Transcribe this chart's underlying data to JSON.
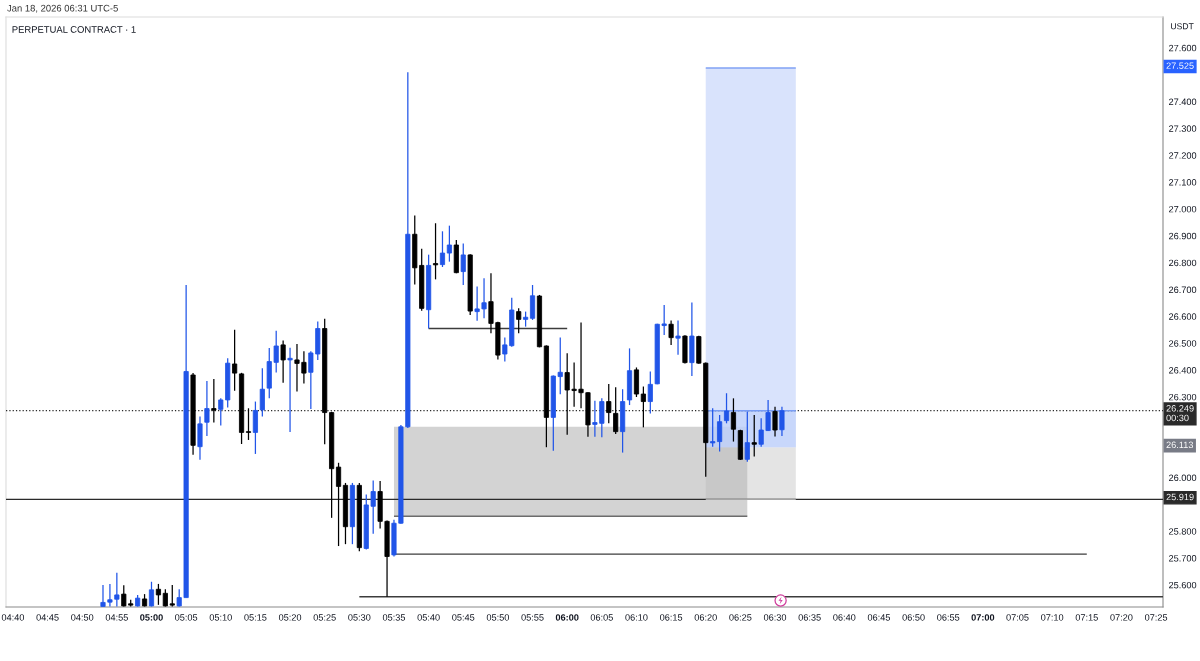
{
  "chart_data": {
    "type": "candlestick",
    "title": "PERPETUAL CONTRACT · 1",
    "ylabel": "USDT",
    "annotations": [
      "Jan 18, 2026 06:31 UTC-5",
      {
        "text": "27.525",
        "y": 27.525
      },
      {
        "text": "26.113",
        "y": 26.113
      }
    ],
    "x": [
      "2026-01-18T04:53",
      "2026-01-18T04:54",
      "2026-01-18T04:55",
      "2026-01-18T04:56",
      "2026-01-18T04:57",
      "2026-01-18T04:58",
      "2026-01-18T04:59",
      "2026-01-18T05:00",
      "2026-01-18T05:01",
      "2026-01-18T05:02",
      "2026-01-18T05:03",
      "2026-01-18T05:04",
      "2026-01-18T05:05",
      "2026-01-18T05:06",
      "2026-01-18T05:07",
      "2026-01-18T05:08",
      "2026-01-18T05:09",
      "2026-01-18T05:10",
      "2026-01-18T05:11",
      "2026-01-18T05:12",
      "2026-01-18T05:13",
      "2026-01-18T05:14",
      "2026-01-18T05:15",
      "2026-01-18T05:16",
      "2026-01-18T05:17",
      "2026-01-18T05:18",
      "2026-01-18T05:19",
      "2026-01-18T05:20",
      "2026-01-18T05:21",
      "2026-01-18T05:22",
      "2026-01-18T05:23",
      "2026-01-18T05:24",
      "2026-01-18T05:25",
      "2026-01-18T05:26",
      "2026-01-18T05:27",
      "2026-01-18T05:28",
      "2026-01-18T05:29",
      "2026-01-18T05:30",
      "2026-01-18T05:31",
      "2026-01-18T05:32",
      "2026-01-18T05:33",
      "2026-01-18T05:34",
      "2026-01-18T05:35",
      "2026-01-18T05:36",
      "2026-01-18T05:37",
      "2026-01-18T05:38",
      "2026-01-18T05:39",
      "2026-01-18T05:40",
      "2026-01-18T05:41",
      "2026-01-18T05:42",
      "2026-01-18T05:43",
      "2026-01-18T05:44",
      "2026-01-18T05:45",
      "2026-01-18T05:46",
      "2026-01-18T05:47",
      "2026-01-18T05:48",
      "2026-01-18T05:49",
      "2026-01-18T05:50",
      "2026-01-18T05:51",
      "2026-01-18T05:52",
      "2026-01-18T05:53",
      "2026-01-18T05:54",
      "2026-01-18T05:55",
      "2026-01-18T05:56",
      "2026-01-18T05:57",
      "2026-01-18T05:58",
      "2026-01-18T05:59",
      "2026-01-18T06:00",
      "2026-01-18T06:01",
      "2026-01-18T06:02",
      "2026-01-18T06:03",
      "2026-01-18T06:04",
      "2026-01-18T06:05",
      "2026-01-18T06:06",
      "2026-01-18T06:07",
      "2026-01-18T06:08",
      "2026-01-18T06:09",
      "2026-01-18T06:10",
      "2026-01-18T06:11",
      "2026-01-18T06:12",
      "2026-01-18T06:13",
      "2026-01-18T06:14",
      "2026-01-18T06:15",
      "2026-01-18T06:16",
      "2026-01-18T06:17",
      "2026-01-18T06:18",
      "2026-01-18T06:19",
      "2026-01-18T06:20",
      "2026-01-18T06:21",
      "2026-01-18T06:22",
      "2026-01-18T06:23",
      "2026-01-18T06:24",
      "2026-01-18T06:25",
      "2026-01-18T06:26",
      "2026-01-18T06:27",
      "2026-01-18T06:28",
      "2026-01-18T06:29",
      "2026-01-18T06:30",
      "2026-01-18T06:31"
    ],
    "ohlc": [
      [
        25.52,
        25.6,
        25.52,
        25.535
      ],
      [
        25.536,
        25.604,
        25.52,
        25.545
      ],
      [
        25.547,
        25.646,
        25.52,
        25.563
      ],
      [
        25.566,
        25.599,
        25.52,
        25.522
      ],
      [
        25.53,
        25.545,
        25.52,
        25.525
      ],
      [
        25.522,
        25.563,
        25.52,
        25.551
      ],
      [
        25.548,
        25.566,
        25.52,
        25.522
      ],
      [
        25.522,
        25.612,
        25.52,
        25.582
      ],
      [
        25.584,
        25.604,
        25.526,
        25.563
      ],
      [
        25.569,
        25.584,
        25.52,
        25.522
      ],
      [
        25.53,
        25.6,
        25.52,
        25.525
      ],
      [
        25.522,
        25.584,
        25.52,
        25.553
      ],
      [
        25.553,
        26.717,
        25.553,
        26.395
      ],
      [
        26.382,
        26.389,
        26.085,
        26.12
      ],
      [
        26.115,
        26.227,
        26.066,
        26.2
      ],
      [
        26.206,
        26.36,
        26.155,
        26.257
      ],
      [
        26.257,
        26.367,
        26.205,
        26.251
      ],
      [
        26.254,
        26.295,
        26.194,
        26.289
      ],
      [
        26.289,
        26.444,
        26.261,
        26.426
      ],
      [
        26.423,
        26.55,
        26.323,
        26.389
      ],
      [
        26.386,
        26.39,
        26.125,
        26.168
      ],
      [
        26.171,
        26.258,
        26.14,
        26.168
      ],
      [
        26.168,
        26.283,
        26.088,
        26.25
      ],
      [
        26.252,
        26.407,
        26.227,
        26.329
      ],
      [
        26.333,
        26.482,
        26.295,
        26.432
      ],
      [
        26.429,
        26.547,
        26.391,
        26.49
      ],
      [
        26.494,
        26.51,
        26.353,
        26.438
      ],
      [
        26.438,
        26.483,
        26.17,
        26.444
      ],
      [
        26.438,
        26.497,
        26.32,
        26.425
      ],
      [
        26.429,
        26.47,
        26.35,
        26.389
      ],
      [
        26.392,
        26.47,
        26.255,
        26.464
      ],
      [
        26.46,
        26.581,
        26.438,
        26.555
      ],
      [
        26.555,
        26.591,
        26.124,
        26.242
      ],
      [
        26.242,
        26.245,
        25.85,
        26.033
      ],
      [
        26.039,
        26.055,
        25.745,
        25.967
      ],
      [
        25.971,
        25.98,
        25.752,
        25.817
      ],
      [
        25.817,
        25.98,
        25.752,
        25.971
      ],
      [
        25.971,
        25.98,
        25.726,
        25.739
      ],
      [
        25.736,
        25.937,
        25.732,
        25.898
      ],
      [
        25.893,
        25.989,
        25.791,
        25.948
      ],
      [
        25.948,
        25.987,
        25.81,
        25.837
      ],
      [
        25.837,
        25.84,
        25.556,
        25.706
      ],
      [
        25.712,
        25.843,
        25.706,
        25.83
      ],
      [
        25.83,
        26.196,
        25.828,
        26.189
      ],
      [
        26.189,
        27.509,
        26.185,
        26.906
      ],
      [
        26.906,
        26.976,
        26.719,
        26.781
      ],
      [
        26.79,
        26.852,
        26.621,
        26.63
      ],
      [
        26.625,
        26.83,
        26.555,
        26.79
      ],
      [
        26.797,
        26.947,
        26.738,
        26.792
      ],
      [
        26.793,
        26.917,
        26.784,
        26.836
      ],
      [
        26.836,
        26.938,
        26.804,
        26.866
      ],
      [
        26.866,
        26.885,
        26.761,
        26.763
      ],
      [
        26.767,
        26.872,
        26.717,
        26.829
      ],
      [
        26.829,
        26.832,
        26.605,
        26.62
      ],
      [
        26.618,
        26.711,
        26.584,
        26.628
      ],
      [
        26.628,
        26.742,
        26.593,
        26.651
      ],
      [
        26.655,
        26.761,
        26.537,
        26.574
      ],
      [
        26.577,
        26.58,
        26.44,
        26.456
      ],
      [
        26.46,
        26.522,
        26.432,
        26.494
      ],
      [
        26.491,
        26.67,
        26.487,
        26.624
      ],
      [
        26.618,
        26.63,
        26.537,
        26.589
      ],
      [
        26.589,
        26.618,
        26.562,
        26.597
      ],
      [
        26.593,
        26.717,
        26.587,
        26.677
      ],
      [
        26.676,
        26.68,
        26.485,
        26.487
      ],
      [
        26.49,
        26.492,
        26.113,
        26.224
      ],
      [
        26.224,
        26.38,
        26.1,
        26.378
      ],
      [
        26.376,
        26.522,
        26.31,
        26.392
      ],
      [
        26.391,
        26.463,
        26.159,
        26.326
      ],
      [
        26.329,
        26.428,
        26.264,
        26.324
      ],
      [
        26.329,
        26.577,
        26.258,
        26.316
      ],
      [
        26.316,
        26.318,
        26.152,
        26.196
      ],
      [
        26.198,
        26.286,
        26.152,
        26.205
      ],
      [
        26.202,
        26.295,
        26.15,
        26.283
      ],
      [
        26.283,
        26.348,
        26.202,
        26.242
      ],
      [
        26.239,
        26.336,
        26.162,
        26.171
      ],
      [
        26.171,
        26.329,
        26.093,
        26.283
      ],
      [
        26.289,
        26.481,
        26.27,
        26.398
      ],
      [
        26.401,
        26.41,
        26.3,
        26.311
      ],
      [
        26.311,
        26.339,
        26.187,
        26.283
      ],
      [
        26.283,
        26.395,
        26.239,
        26.347
      ],
      [
        26.349,
        26.573,
        26.347,
        26.571
      ],
      [
        26.566,
        26.643,
        26.531,
        26.572
      ],
      [
        26.571,
        26.585,
        26.494,
        26.521
      ],
      [
        26.519,
        26.585,
        26.457,
        26.527
      ],
      [
        26.527,
        26.53,
        26.425,
        26.428
      ],
      [
        26.428,
        26.652,
        26.378,
        26.527
      ],
      [
        26.525,
        26.528,
        26.424,
        26.426
      ],
      [
        26.426,
        26.428,
        26.003,
        26.13
      ],
      [
        26.129,
        26.258,
        26.115,
        26.134
      ],
      [
        26.134,
        26.233,
        26.097,
        26.208
      ],
      [
        26.212,
        26.314,
        26.202,
        26.248
      ],
      [
        26.242,
        26.295,
        26.134,
        26.18
      ],
      [
        26.175,
        26.178,
        26.066,
        26.068
      ],
      [
        26.068,
        26.246,
        26.059,
        26.13
      ],
      [
        26.13,
        26.233,
        26.078,
        26.124
      ],
      [
        26.124,
        26.221,
        26.115,
        26.177
      ],
      [
        26.175,
        26.289,
        26.173,
        26.242
      ],
      [
        26.246,
        26.264,
        26.153,
        26.177
      ],
      [
        26.178,
        26.264,
        26.155,
        26.249
      ]
    ],
    "colors": [
      "#2155e8",
      "#2155e8",
      "#2155e8",
      "#000000",
      "#000000",
      "#2155e8",
      "#000000",
      "#2155e8",
      "#000000",
      "#000000",
      "#000000",
      "#2155e8",
      "#2155e8",
      "#000000",
      "#2155e8",
      "#2155e8",
      "#000000",
      "#2155e8",
      "#2155e8",
      "#000000",
      "#000000",
      "#000000",
      "#2155e8",
      "#2155e8",
      "#2155e8",
      "#2155e8",
      "#000000",
      "#2155e8",
      "#000000",
      "#000000",
      "#2155e8",
      "#2155e8",
      "#000000",
      "#000000",
      "#000000",
      "#000000",
      "#2155e8",
      "#000000",
      "#2155e8",
      "#2155e8",
      "#000000",
      "#000000",
      "#2155e8",
      "#2155e8",
      "#2155e8",
      "#000000",
      "#000000",
      "#2155e8",
      "#000000",
      "#2155e8",
      "#2155e8",
      "#000000",
      "#2155e8",
      "#000000",
      "#2155e8",
      "#2155e8",
      "#000000",
      "#000000",
      "#2155e8",
      "#2155e8",
      "#000000",
      "#2155e8",
      "#2155e8",
      "#000000",
      "#000000",
      "#2155e8",
      "#2155e8",
      "#000000",
      "#000000",
      "#000000",
      "#000000",
      "#2155e8",
      "#2155e8",
      "#000000",
      "#000000",
      "#2155e8",
      "#2155e8",
      "#000000",
      "#000000",
      "#2155e8",
      "#2155e8",
      "#2155e8",
      "#000000",
      "#2155e8",
      "#000000",
      "#2155e8",
      "#000000",
      "#000000",
      "#2155e8",
      "#2155e8",
      "#2155e8",
      "#000000",
      "#000000",
      "#2155e8",
      "#000000",
      "#2155e8",
      "#2155e8",
      "#000000",
      "#2155e8"
    ],
    "series": [
      {
        "type": "line",
        "x": [
          "2026-01-18T06:20",
          "2026-01-18T06:33"
        ],
        "values": [
          25.919,
          25.919
        ],
        "lower": [
          25.919,
          25.919
        ],
        "upper": [
          26.113,
          26.113
        ],
        "color": "#a5a5a5"
      },
      {
        "type": "line",
        "x": [
          "2026-01-18T05:35",
          "2026-01-18T06:26"
        ],
        "values": [
          25.856,
          25.856
        ],
        "lower": [
          25.856,
          25.856
        ],
        "upper": [
          26.189,
          26.189
        ],
        "color": "#6c6c6c"
      },
      {
        "type": "line",
        "x": [
          "2026-01-18T06:20",
          "2026-01-18T06:33"
        ],
        "values": [
          27.525,
          27.525
        ],
        "lower": [
          26.113,
          26.113
        ],
        "upper": [
          27.525,
          27.525
        ],
        "color": "#80a2f5"
      },
      {
        "type": "line",
        "x": [
          "2026-01-18T06:20",
          "2026-01-18T06:33"
        ],
        "values": [
          26.249,
          26.249
        ],
        "lower": [
          26.113,
          26.113
        ],
        "upper": [
          26.249,
          26.249
        ],
        "color": "#799df5"
      },
      {
        "type": "line",
        "x": [
          "2026-01-18T05:40",
          "2026-01-18T06:00"
        ],
        "values": [
          26.555,
          26.555
        ],
        "color": "#3c3c3c"
      },
      {
        "type": "line",
        "x": [
          "2026-01-18T05:35",
          "2026-01-18T07:15"
        ],
        "values": [
          25.715,
          25.715
        ],
        "color": "#3c3c3c"
      },
      {
        "type": "line",
        "x": [
          "2026-01-18T05:30",
          "2026-01-18T07:26"
        ],
        "values": [
          25.556,
          25.556
        ],
        "color": "#3c3c3c"
      }
    ],
    "ref_lines": [
      {
        "axis": "y",
        "value": 25.919,
        "label": "25.919",
        "color": "#2a2a2a",
        "line_style": "solid"
      },
      {
        "axis": "y",
        "value": 26.249,
        "label": "26.249\n00:30",
        "color": "#2a2a2a",
        "line_style": "dotted"
      }
    ],
    "xlim": [
      "2026-01-18T04:39",
      "2026-01-18T07:26"
    ],
    "xticks": [
      {
        "value": "2026-01-18T04:40",
        "label": "04:40"
      },
      {
        "value": "2026-01-18T04:45",
        "label": "04:45"
      },
      {
        "value": "2026-01-18T04:50",
        "label": "04:50"
      },
      {
        "value": "2026-01-18T04:55",
        "label": "04:55"
      },
      {
        "value": "2026-01-18T05:00",
        "label": "05:00"
      },
      {
        "value": "2026-01-18T05:05",
        "label": "05:05"
      },
      {
        "value": "2026-01-18T05:10",
        "label": "05:10"
      },
      {
        "value": "2026-01-18T05:15",
        "label": "05:15"
      },
      {
        "value": "2026-01-18T05:20",
        "label": "05:20"
      },
      {
        "value": "2026-01-18T05:25",
        "label": "05:25"
      },
      {
        "value": "2026-01-18T05:30",
        "label": "05:30"
      },
      {
        "value": "2026-01-18T05:35",
        "label": "05:35"
      },
      {
        "value": "2026-01-18T05:40",
        "label": "05:40"
      },
      {
        "value": "2026-01-18T05:45",
        "label": "05:45"
      },
      {
        "value": "2026-01-18T05:50",
        "label": "05:50"
      },
      {
        "value": "2026-01-18T05:55",
        "label": "05:55"
      },
      {
        "value": "2026-01-18T06:00",
        "label": "06:00"
      },
      {
        "value": "2026-01-18T06:05",
        "label": "06:05"
      },
      {
        "value": "2026-01-18T06:10",
        "label": "06:10"
      },
      {
        "value": "2026-01-18T06:15",
        "label": "06:15"
      },
      {
        "value": "2026-01-18T06:20",
        "label": "06:20"
      },
      {
        "value": "2026-01-18T06:25",
        "label": "06:25"
      },
      {
        "value": "2026-01-18T06:30",
        "label": "06:30"
      },
      {
        "value": "2026-01-18T06:35",
        "label": "06:35"
      },
      {
        "value": "2026-01-18T06:40",
        "label": "06:40"
      },
      {
        "value": "2026-01-18T06:45",
        "label": "06:45"
      },
      {
        "value": "2026-01-18T06:50",
        "label": "06:50"
      },
      {
        "value": "2026-01-18T06:55",
        "label": "06:55"
      },
      {
        "value": "2026-01-18T07:00",
        "label": "07:00"
      },
      {
        "value": "2026-01-18T07:05",
        "label": "07:05"
      },
      {
        "value": "2026-01-18T07:10",
        "label": "07:10"
      },
      {
        "value": "2026-01-18T07:15",
        "label": "07:15"
      },
      {
        "value": "2026-01-18T07:20",
        "label": "07:20"
      },
      {
        "value": "2026-01-18T07:25",
        "label": "07:25"
      }
    ],
    "ylim": [
      25.518,
      27.715
    ],
    "yticks": [
      {
        "value": 25.6,
        "label": "25.600"
      },
      {
        "value": 25.7,
        "label": "25.700"
      },
      {
        "value": 25.8,
        "label": "25.800"
      },
      {
        "value": 26.0,
        "label": "26.000"
      },
      {
        "value": 26.3,
        "label": "26.300"
      },
      {
        "value": 26.4,
        "label": "26.400"
      },
      {
        "value": 26.5,
        "label": "26.500"
      },
      {
        "value": 26.6,
        "label": "26.600"
      },
      {
        "value": 26.7,
        "label": "26.700"
      },
      {
        "value": 26.8,
        "label": "26.800"
      },
      {
        "value": 26.9,
        "label": "26.900"
      },
      {
        "value": 27.0,
        "label": "27.000"
      },
      {
        "value": 27.1,
        "label": "27.100"
      },
      {
        "value": 27.2,
        "label": "27.200"
      },
      {
        "value": 27.3,
        "label": "27.300"
      },
      {
        "value": 27.4,
        "label": "27.400"
      },
      {
        "value": 27.6,
        "label": "27.600"
      }
    ]
  }
}
